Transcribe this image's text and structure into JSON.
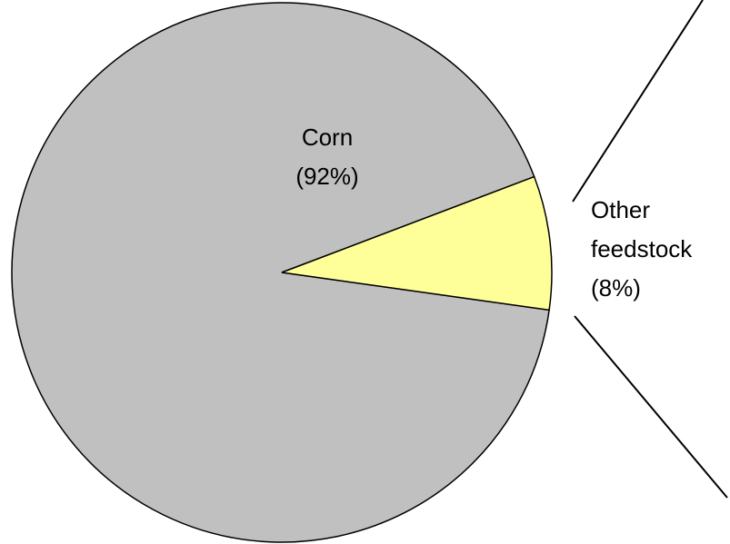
{
  "chart_data": {
    "type": "pie",
    "categories": [
      "Corn",
      "Other feedstock"
    ],
    "values": [
      92,
      8
    ],
    "value_labels": [
      "(92%)",
      "(8%)"
    ],
    "colors": [
      "#c0c0c0",
      "#ffff99"
    ]
  }
}
